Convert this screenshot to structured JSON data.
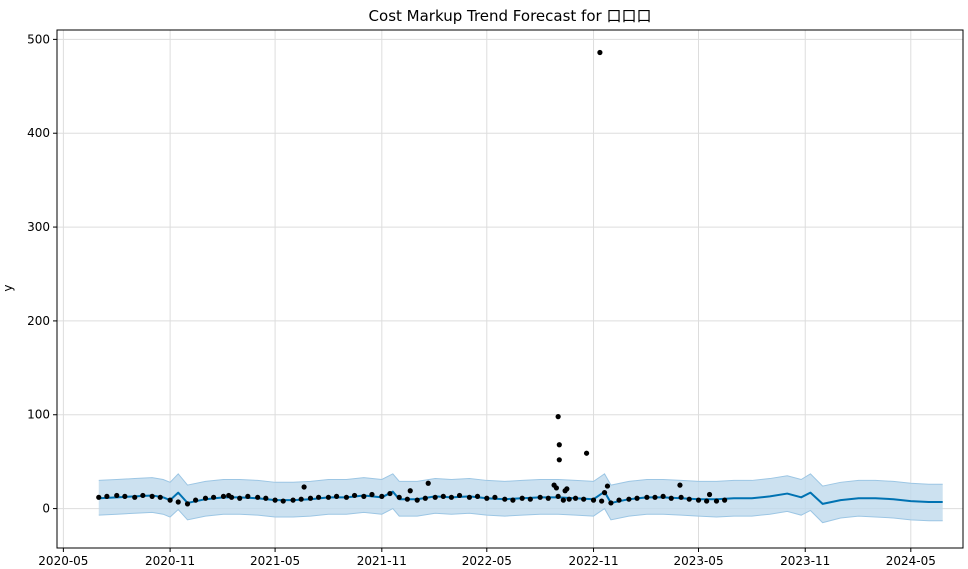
{
  "chart_data": {
    "type": "line",
    "title": "Cost Markup Trend Forecast for 口口口",
    "xlabel": "",
    "ylabel": "y",
    "x_ticks": [
      "2020-05",
      "2020-11",
      "2021-05",
      "2021-11",
      "2022-05",
      "2022-11",
      "2023-05",
      "2023-11",
      "2024-05"
    ],
    "y_ticks": [
      0,
      100,
      200,
      300,
      400,
      500
    ],
    "ylim": [
      -42,
      510
    ],
    "xlim": [
      "2020-04-20",
      "2024-07-30"
    ],
    "grid": true,
    "colors": {
      "forecast_line": "#0072B2",
      "uncertainty_band": "#BFD9EC",
      "band_edge": "#9CC6E4",
      "observations": "#000000",
      "grid": "#DDDDDD"
    },
    "series": [
      {
        "role": "forecast",
        "x": [
          "2020-07-01",
          "2020-08-01",
          "2020-09-01",
          "2020-10-01",
          "2020-10-20",
          "2020-11-01",
          "2020-11-15",
          "2020-12-01",
          "2021-01-01",
          "2021-02-01",
          "2021-03-01",
          "2021-04-01",
          "2021-05-01",
          "2021-06-01",
          "2021-07-01",
          "2021-08-01",
          "2021-09-01",
          "2021-10-01",
          "2021-11-01",
          "2021-11-20",
          "2021-12-01",
          "2022-01-01",
          "2022-02-01",
          "2022-03-01",
          "2022-04-01",
          "2022-05-01",
          "2022-06-01",
          "2022-07-01",
          "2022-08-01",
          "2022-09-01",
          "2022-10-01",
          "2022-11-01",
          "2022-11-20",
          "2022-12-01",
          "2023-01-01",
          "2023-02-01",
          "2023-03-01",
          "2023-04-01",
          "2023-05-01",
          "2023-06-01",
          "2023-07-01",
          "2023-08-01",
          "2023-09-01",
          "2023-10-01",
          "2023-10-25",
          "2023-11-10",
          "2023-12-01",
          "2024-01-01",
          "2024-02-01",
          "2024-03-01",
          "2024-04-01",
          "2024-05-01",
          "2024-06-01",
          "2024-06-25"
        ],
        "y": [
          11,
          12,
          13,
          14,
          12,
          9,
          17,
          6,
          10,
          12,
          12,
          11,
          9,
          9,
          10,
          12,
          12,
          14,
          12,
          18,
          10,
          10,
          13,
          12,
          13,
          11,
          10,
          11,
          12,
          12,
          11,
          10,
          18,
          6,
          10,
          12,
          12,
          11,
          10,
          10,
          11,
          11,
          13,
          16,
          12,
          17,
          5,
          9,
          11,
          11,
          10,
          8,
          7,
          7
        ],
        "lower": [
          -7,
          -6,
          -5,
          -4,
          -6,
          -9,
          -1,
          -12,
          -8,
          -6,
          -6,
          -7,
          -9,
          -9,
          -8,
          -6,
          -6,
          -4,
          -6,
          0,
          -8,
          -8,
          -5,
          -6,
          -5,
          -7,
          -8,
          -7,
          -6,
          -6,
          -7,
          -8,
          0,
          -12,
          -8,
          -6,
          -6,
          -7,
          -8,
          -9,
          -8,
          -8,
          -6,
          -3,
          -7,
          -2,
          -15,
          -10,
          -8,
          -9,
          -10,
          -12,
          -13,
          -13
        ],
        "upper": [
          30,
          31,
          32,
          33,
          31,
          28,
          37,
          25,
          29,
          31,
          31,
          30,
          28,
          28,
          29,
          31,
          31,
          33,
          31,
          37,
          29,
          29,
          32,
          31,
          32,
          30,
          29,
          30,
          31,
          31,
          30,
          29,
          37,
          25,
          29,
          31,
          31,
          30,
          29,
          29,
          30,
          30,
          32,
          35,
          31,
          37,
          24,
          28,
          30,
          30,
          29,
          27,
          26,
          26
        ]
      },
      {
        "role": "observed",
        "x": [
          "2020-07-01",
          "2020-07-15",
          "2020-08-01",
          "2020-08-15",
          "2020-09-01",
          "2020-09-15",
          "2020-10-01",
          "2020-10-15",
          "2020-11-01",
          "2020-11-15",
          "2020-12-01",
          "2020-12-15",
          "2021-01-01",
          "2021-01-15",
          "2021-02-01",
          "2021-02-15",
          "2021-03-01",
          "2021-03-15",
          "2021-04-01",
          "2021-04-15",
          "2021-05-01",
          "2021-05-15",
          "2021-06-01",
          "2021-06-15",
          "2021-07-01",
          "2021-07-15",
          "2021-08-01",
          "2021-08-15",
          "2021-09-01",
          "2021-09-15",
          "2021-10-01",
          "2021-10-15",
          "2021-11-01",
          "2021-11-15",
          "2021-12-01",
          "2021-12-15",
          "2022-01-01",
          "2022-01-15",
          "2022-02-01",
          "2022-02-15",
          "2022-03-01",
          "2022-03-15",
          "2022-04-01",
          "2022-04-15",
          "2022-05-01",
          "2022-05-15",
          "2022-06-01",
          "2022-06-15",
          "2022-07-01",
          "2022-07-15",
          "2022-08-01",
          "2022-08-15",
          "2022-09-01",
          "2022-09-10",
          "2022-09-20",
          "2022-10-01",
          "2022-10-15",
          "2022-11-01",
          "2022-11-15",
          "2022-12-01",
          "2022-12-15",
          "2023-01-01",
          "2023-01-15",
          "2023-02-01",
          "2023-02-15",
          "2023-03-01",
          "2023-03-15",
          "2023-04-01",
          "2023-04-15",
          "2023-05-01",
          "2023-05-15",
          "2023-06-01",
          "2023-06-15",
          "2021-02-10",
          "2021-06-20",
          "2021-12-20",
          "2022-01-20",
          "2022-08-25",
          "2022-08-29",
          "2022-09-01",
          "2022-09-03",
          "2022-09-03",
          "2022-09-13",
          "2022-09-16",
          "2022-10-20",
          "2022-11-12",
          "2022-11-25",
          "2022-11-20",
          "2023-03-30",
          "2023-05-20"
        ],
        "y": [
          12,
          13,
          14,
          13,
          12,
          14,
          13,
          12,
          9,
          7,
          5,
          9,
          11,
          12,
          13,
          12,
          11,
          13,
          12,
          11,
          9,
          8,
          9,
          10,
          11,
          12,
          12,
          13,
          12,
          14,
          13,
          15,
          13,
          16,
          12,
          10,
          9,
          11,
          12,
          13,
          12,
          14,
          12,
          13,
          11,
          12,
          10,
          9,
          11,
          10,
          12,
          11,
          13,
          9,
          10,
          11,
          10,
          9,
          8,
          6,
          9,
          10,
          11,
          12,
          12,
          13,
          11,
          12,
          10,
          9,
          8,
          8,
          9,
          14,
          23,
          19,
          27,
          25,
          22,
          98,
          52,
          68,
          19,
          21,
          59,
          486,
          24,
          17,
          25,
          15
        ]
      }
    ]
  }
}
